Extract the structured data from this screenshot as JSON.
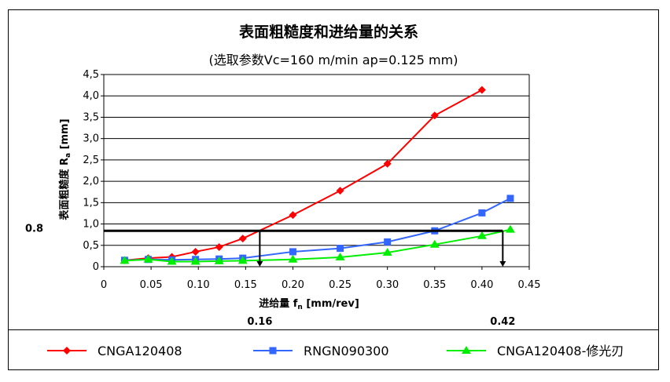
{
  "chart_data": {
    "type": "line",
    "title": "表面粗糙度和进给量的关系",
    "subtitle": "(选取参数Vc=160 m/min  ap=0.125 mm)",
    "xlabel": "进给量 f",
    "xlabel_sub": "n",
    "xlabel_unit": " [mm/rev]",
    "ylabel": "表面粗糙度 R",
    "ylabel_sub": "a",
    "ylabel_unit": " [mm]",
    "xlim": [
      0,
      0.45
    ],
    "ylim": [
      0,
      4.5
    ],
    "x_ticks": [
      0,
      0.05,
      0.1,
      0.15,
      0.2,
      0.25,
      0.3,
      0.35,
      0.4,
      0.45
    ],
    "x_tick_labels": [
      "0",
      "0.05",
      "0.10",
      "0.15",
      "0.20",
      "0.25",
      "0.30",
      "0.35",
      "0.40",
      "0.45"
    ],
    "y_ticks": [
      0,
      0.5,
      1.0,
      1.5,
      2.0,
      2.5,
      3.0,
      3.5,
      4.0,
      4.5
    ],
    "y_tick_labels": [
      "0",
      "0,5",
      "1,0",
      "1,5",
      "2,0",
      "2,5",
      "3,0",
      "3,5",
      "4,0",
      "4,5"
    ],
    "gridlines": "horizontal",
    "series": [
      {
        "name": "CNGA120408",
        "color": "#ff0000",
        "marker": "diamond",
        "x": [
          0.022,
          0.047,
          0.072,
          0.097,
          0.122,
          0.147,
          0.2,
          0.25,
          0.3,
          0.35,
          0.4
        ],
        "y": [
          0.15,
          0.2,
          0.23,
          0.35,
          0.46,
          0.66,
          1.21,
          1.78,
          2.41,
          3.54,
          4.14
        ]
      },
      {
        "name": "RNGN090300",
        "color": "#3366ff",
        "marker": "square",
        "x": [
          0.022,
          0.047,
          0.072,
          0.097,
          0.122,
          0.147,
          0.2,
          0.25,
          0.3,
          0.35,
          0.4,
          0.43
        ],
        "y": [
          0.15,
          0.17,
          0.16,
          0.17,
          0.18,
          0.2,
          0.35,
          0.43,
          0.58,
          0.84,
          1.26,
          1.6
        ]
      },
      {
        "name": "CNGA120408-修光刃",
        "color": "#00ee00",
        "marker": "triangle",
        "x": [
          0.022,
          0.047,
          0.072,
          0.097,
          0.122,
          0.147,
          0.2,
          0.25,
          0.3,
          0.35,
          0.4,
          0.43
        ],
        "y": [
          0.14,
          0.17,
          0.12,
          0.12,
          0.13,
          0.14,
          0.17,
          0.22,
          0.33,
          0.52,
          0.72,
          0.87
        ]
      }
    ],
    "annotations": {
      "threshold_y": 0.84,
      "threshold_label": "0.8",
      "drop_lines": [
        {
          "x": 0.165,
          "label": "0.16"
        },
        {
          "x": 0.422,
          "label": "0.42"
        }
      ]
    }
  }
}
